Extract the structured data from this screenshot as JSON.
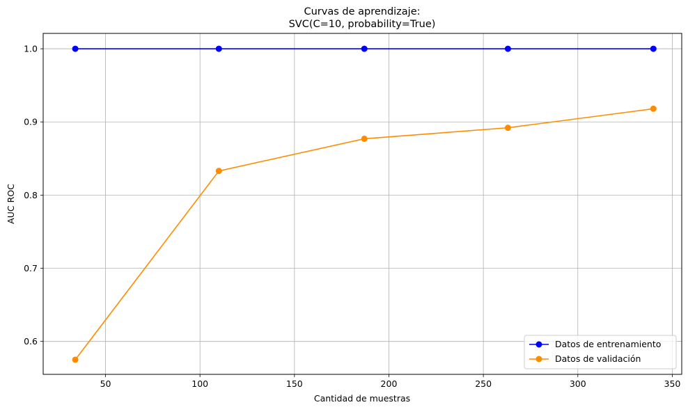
{
  "chart_data": {
    "type": "line",
    "title": "Curvas de aprendizaje:",
    "subtitle": "SVC(C=10, probability=True)",
    "xlabel": "Cantidad de muestras",
    "ylabel": "AUC ROC",
    "xlim": [
      17,
      355
    ],
    "ylim": [
      0.555,
      1.021
    ],
    "xticks": [
      50,
      100,
      150,
      200,
      250,
      300,
      350
    ],
    "xtick_labels": [
      "50",
      "100",
      "150",
      "200",
      "250",
      "300",
      "350"
    ],
    "yticks": [
      0.6,
      0.7,
      0.8,
      0.9,
      1.0
    ],
    "ytick_labels": [
      "0.6",
      "0.7",
      "0.8",
      "0.9",
      "1.0"
    ],
    "grid": true,
    "legend_position": "lower-right",
    "x": [
      34,
      110,
      187,
      263,
      340
    ],
    "series": [
      {
        "name": "Datos de entrenamiento",
        "color": "#0000ff",
        "marker": "circle",
        "values": [
          1.0,
          1.0,
          1.0,
          1.0,
          1.0
        ]
      },
      {
        "name": "Datos de validación",
        "color": "#ff8c00",
        "marker": "circle",
        "values": [
          0.575,
          0.833,
          0.877,
          0.892,
          0.918
        ]
      }
    ]
  }
}
